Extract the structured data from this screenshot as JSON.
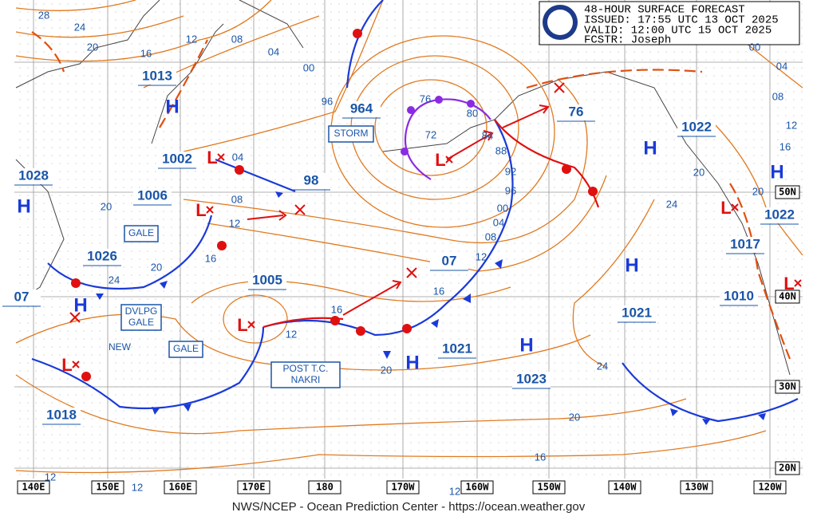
{
  "header": {
    "issued_title": "48-HOUR SURFACE FORECAST",
    "issued": "ISSUED: 17:55 UTC 13 OCT 2025",
    "valid": "VALID:  12:00 UTC 15 OCT 2025",
    "forecaster": "FCSTR:  Joseph"
  },
  "pressure_labels": [
    "1013",
    "1002",
    "1006",
    "1028",
    "1026",
    "07",
    "1005",
    "964",
    "98",
    "07",
    "1021",
    "1023",
    "1018",
    "1022",
    "1022",
    "1017",
    "1010",
    "1021",
    "76"
  ],
  "high_symbols": [
    "H",
    "H",
    "H",
    "H",
    "H",
    "H",
    "H",
    "H"
  ],
  "low_symbols": [
    "L",
    "L",
    "L",
    "L",
    "L",
    "L",
    "L"
  ],
  "isobar_labels": [
    "28",
    "24",
    "20",
    "16",
    "12",
    "08",
    "04",
    "00",
    "96",
    "04",
    "08",
    "12",
    "16",
    "20",
    "24",
    "20",
    "12",
    "16",
    "16",
    "12",
    "08",
    "04",
    "00",
    "96",
    "92",
    "88",
    "84",
    "80",
    "76",
    "72",
    "20",
    "24",
    "20",
    "16",
    "12",
    "12",
    "12",
    "24",
    "20",
    "20",
    "16",
    "12",
    "08",
    "04",
    "00"
  ],
  "boxes": [
    "STORM",
    "GALE",
    "DVLPG\nGALE",
    "GALE",
    "POST T.C.\nNAKRI"
  ],
  "notes": [
    "NEW"
  ],
  "longitude_labels": [
    "140E",
    "150E",
    "160E",
    "170E",
    "180",
    "170W",
    "160W",
    "150W",
    "140W",
    "130W",
    "120W"
  ],
  "latitude_labels": [
    "50N",
    "40N",
    "30N",
    "20N"
  ],
  "footer": "NWS/NCEP - Ocean Prediction Center - https://ocean.weather.gov"
}
